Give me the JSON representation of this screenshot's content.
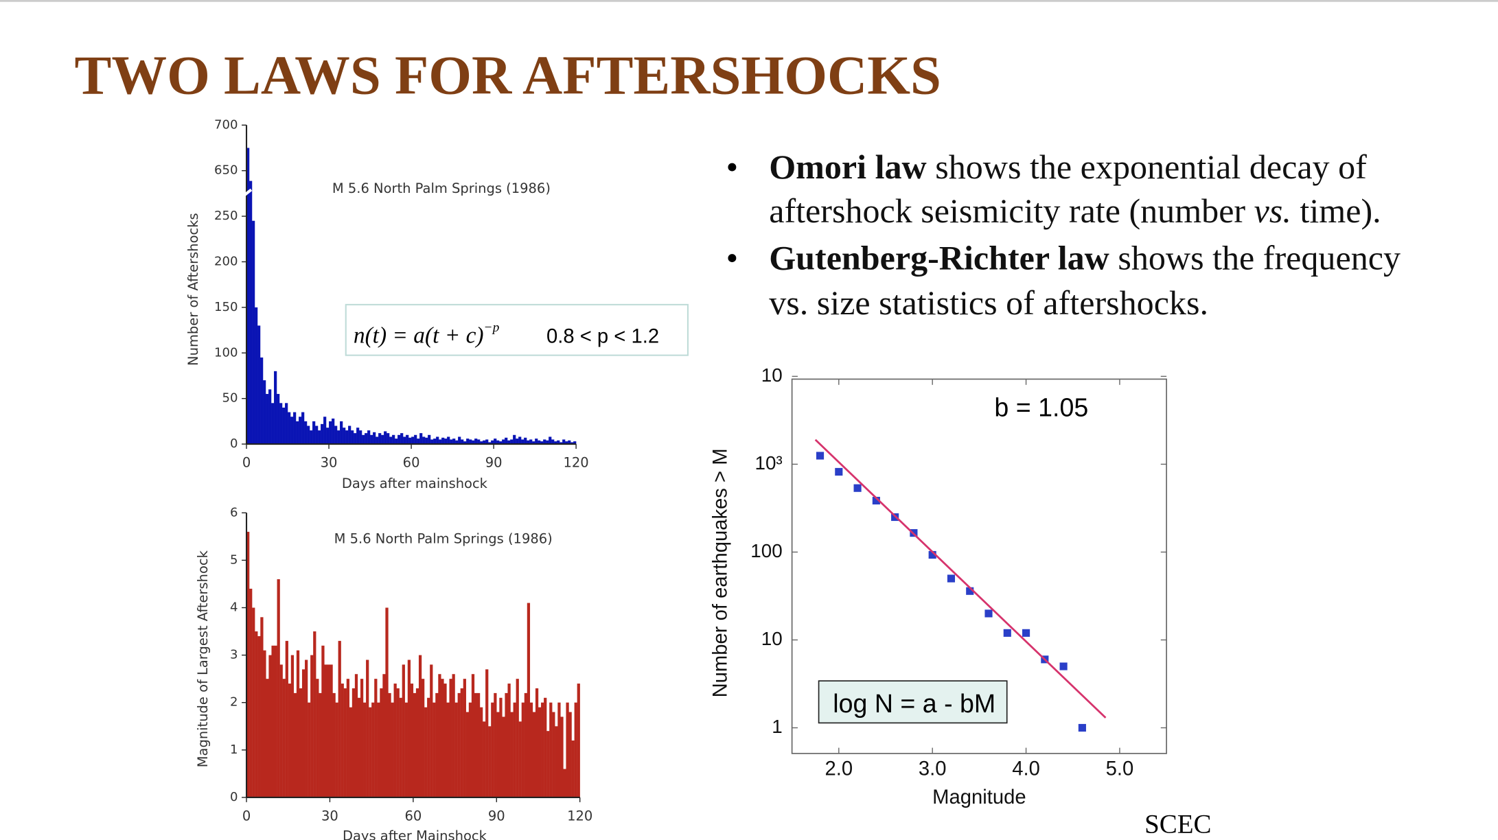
{
  "title": "TWO LAWS FOR AFTERSHOCKS",
  "bullets": [
    {
      "bold": "Omori law",
      "line1": "shows the exponential decay of",
      "line2a": "aftershock seismicity rate (number",
      "line2b": "vs.",
      "line2c": "time)."
    },
    {
      "bold": "Gutenberg-Richter law",
      "line1": "shows the frequency",
      "line2a": "vs. size statistics of aftershocks."
    }
  ],
  "credit": "SCEC",
  "chart_data": [
    {
      "type": "histogram",
      "annotation": "M 5.6  North Palm Springs (1986)",
      "formula": "n(t) = a(t + c)",
      "formula_exponent": "−p",
      "formula_range": "0.8 < p < 1.2",
      "xlabel": "Days after mainshock",
      "ylabel": "Number of Aftershocks",
      "color": "#0a14b4",
      "axis_break": true,
      "bins": [
        0,
        1,
        2,
        3,
        4,
        5,
        6,
        7,
        8,
        9,
        10,
        11,
        12,
        13,
        14,
        15,
        16,
        17,
        18,
        19,
        20,
        21,
        22,
        23,
        24,
        25,
        26,
        27,
        28,
        29,
        30,
        31,
        32,
        33,
        34,
        35,
        36,
        37,
        38,
        39,
        40,
        41,
        42,
        43,
        44,
        45,
        46,
        47,
        48,
        49,
        50,
        51,
        52,
        53,
        54,
        55,
        56,
        57,
        58,
        59,
        60,
        61,
        62,
        63,
        64,
        65,
        66,
        67,
        68,
        69,
        70,
        71,
        72,
        73,
        74,
        75,
        76,
        77,
        78,
        79,
        80,
        81,
        82,
        83,
        84,
        85,
        86,
        87,
        88,
        89,
        90,
        91,
        92,
        93,
        94,
        95,
        96,
        97,
        98,
        99,
        100,
        101,
        102,
        103,
        104,
        105,
        106,
        107,
        108,
        109,
        110,
        111,
        112,
        113,
        114,
        115,
        116,
        117,
        118,
        119,
        120
      ],
      "values": [
        675,
        560,
        245,
        150,
        130,
        95,
        70,
        55,
        60,
        45,
        80,
        55,
        45,
        40,
        45,
        35,
        30,
        35,
        25,
        30,
        35,
        25,
        20,
        15,
        25,
        20,
        15,
        22,
        30,
        18,
        25,
        28,
        20,
        15,
        25,
        18,
        15,
        20,
        15,
        12,
        18,
        15,
        10,
        12,
        15,
        10,
        13,
        8,
        12,
        10,
        14,
        12,
        8,
        10,
        6,
        10,
        12,
        8,
        10,
        7,
        8,
        10,
        6,
        12,
        8,
        7,
        10,
        5,
        6,
        8,
        5,
        7,
        6,
        8,
        5,
        6,
        4,
        8,
        5,
        3,
        6,
        5,
        4,
        6,
        5,
        3,
        4,
        5,
        2,
        4,
        6,
        4,
        3,
        5,
        7,
        4,
        5,
        10,
        6,
        8,
        5,
        7,
        4,
        5,
        3,
        6,
        4,
        3,
        5,
        4,
        8,
        5,
        3,
        4,
        2,
        5,
        3,
        4,
        2,
        3
      ],
      "xlim": [
        0,
        120
      ],
      "xticks": [
        0,
        30,
        60,
        90,
        120
      ],
      "ylim": [
        0,
        700
      ],
      "yticks": [
        0,
        50,
        100,
        150,
        200,
        250,
        650,
        700
      ]
    },
    {
      "type": "histogram",
      "annotation": "M 5.6  North Palm Springs (1986)",
      "xlabel": "Days after Mainshock",
      "ylabel": "Magnitude of Largest Aftershock",
      "color": "#b8281e",
      "bins": [
        0,
        1,
        2,
        3,
        4,
        5,
        6,
        7,
        8,
        9,
        10,
        11,
        12,
        13,
        14,
        15,
        16,
        17,
        18,
        19,
        20,
        21,
        22,
        23,
        24,
        25,
        26,
        27,
        28,
        29,
        30,
        31,
        32,
        33,
        34,
        35,
        36,
        37,
        38,
        39,
        40,
        41,
        42,
        43,
        44,
        45,
        46,
        47,
        48,
        49,
        50,
        51,
        52,
        53,
        54,
        55,
        56,
        57,
        58,
        59,
        60,
        61,
        62,
        63,
        64,
        65,
        66,
        67,
        68,
        69,
        70,
        71,
        72,
        73,
        74,
        75,
        76,
        77,
        78,
        79,
        80,
        81,
        82,
        83,
        84,
        85,
        86,
        87,
        88,
        89,
        90,
        91,
        92,
        93,
        94,
        95,
        96,
        97,
        98,
        99,
        100,
        101,
        102,
        103,
        104,
        105,
        106,
        107,
        108,
        109,
        110,
        111,
        112,
        113,
        114,
        115,
        116,
        117,
        118,
        119,
        120
      ],
      "values": [
        5.6,
        4.4,
        4.0,
        3.5,
        3.4,
        3.8,
        3.1,
        2.5,
        3.0,
        3.2,
        3.2,
        4.6,
        2.8,
        2.5,
        3.3,
        2.4,
        3.0,
        2.2,
        3.1,
        2.3,
        2.7,
        2.9,
        2.0,
        3.0,
        3.5,
        2.5,
        2.2,
        3.2,
        2.8,
        2.8,
        2.8,
        2.2,
        2.0,
        3.3,
        2.4,
        2.3,
        2.5,
        1.9,
        2.3,
        2.6,
        2.1,
        2.5,
        2.0,
        2.9,
        1.9,
        2.0,
        2.5,
        2.0,
        2.3,
        2.6,
        4.0,
        2.2,
        2.0,
        2.4,
        2.3,
        2.1,
        2.8,
        2.0,
        2.9,
        2.4,
        2.2,
        2.3,
        3.0,
        2.5,
        1.9,
        2.1,
        2.8,
        2.0,
        2.2,
        2.6,
        2.5,
        2.4,
        2.0,
        2.5,
        2.6,
        2.0,
        2.2,
        2.3,
        2.5,
        1.8,
        2.0,
        2.6,
        2.2,
        2.2,
        1.9,
        1.6,
        2.7,
        1.5,
        2.0,
        2.2,
        1.8,
        2.1,
        1.7,
        2.2,
        2.4,
        1.8,
        2.0,
        2.5,
        1.6,
        2.0,
        2.2,
        4.1,
        2.0,
        1.8,
        2.3,
        1.9,
        2.0,
        2.1,
        1.4,
        2.0,
        1.8,
        1.5,
        2.0,
        1.7,
        0.6,
        2.0,
        1.8,
        1.2,
        2.0,
        2.4
      ],
      "xlim": [
        0,
        120
      ],
      "xticks": [
        0,
        30,
        60,
        90,
        120
      ],
      "ylim": [
        0,
        6
      ],
      "yticks": [
        0,
        1,
        2,
        3,
        4,
        5,
        6
      ]
    },
    {
      "type": "scatter",
      "annotation": "b = 1.05",
      "formula": "log N = a - bM",
      "xlabel": "Magnitude",
      "ylabel": "Number of earthquakes > M",
      "ylog": true,
      "series": [
        {
          "color": "#2a3fc8",
          "x": [
            1.8,
            2.0,
            2.2,
            2.4,
            2.6,
            2.8,
            3.0,
            3.2,
            3.4,
            3.6,
            3.8,
            4.0,
            4.2,
            4.4,
            4.6
          ],
          "values": [
            1250,
            820,
            535,
            385,
            250,
            165,
            93,
            50,
            36,
            20,
            12,
            12,
            6,
            5,
            1
          ]
        },
        {
          "type": "line",
          "color": "#d6336c",
          "x": [
            1.75,
            4.85
          ],
          "values": [
            1900,
            1.3
          ]
        }
      ],
      "xlim": [
        1.5,
        5.5
      ],
      "xticks": [
        {
          "value": 2,
          "label": "2.0"
        },
        {
          "value": 3,
          "label": "3.0"
        },
        {
          "value": 4,
          "label": "4.0"
        },
        {
          "value": 5,
          "label": "5.0"
        }
      ],
      "ylim": [
        0.51,
        9300
      ],
      "yticks": [
        1,
        10,
        100,
        {
          "value": 1000,
          "label": "10³"
        },
        {
          "value": 10000,
          "label": "10"
        }
      ]
    }
  ]
}
